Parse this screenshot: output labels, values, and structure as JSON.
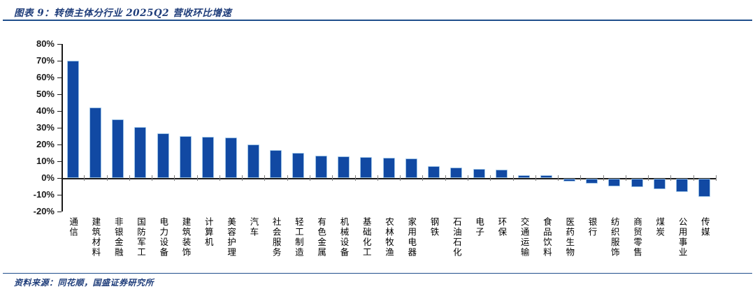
{
  "header": {
    "title": "图表 9：转债主体分行业 2025Q2 营收环比增速"
  },
  "footer": {
    "source": "资料来源：同花顺，国盛证券研究所"
  },
  "colors": {
    "accent_navy": "#1F3D7A",
    "rule_blue": "#1F4E8C",
    "bar_fill": "#1149A3",
    "bar_border": "#9DC3E6",
    "axis_black": "#1a1a1a"
  },
  "chart_data": {
    "type": "bar",
    "title": "转债主体分行业 2025Q2 营收环比增速",
    "categories": [
      "通信",
      "建筑材料",
      "非银金融",
      "国防军工",
      "电力设备",
      "建筑装饰",
      "计算机",
      "美容护理",
      "汽车",
      "社会服务",
      "轻工制造",
      "有色金属",
      "机械设备",
      "基础化工",
      "农林牧渔",
      "家用电器",
      "钢铁",
      "石油石化",
      "电子",
      "环保",
      "交通运输",
      "食品饮料",
      "医药生物",
      "银行",
      "纺织服饰",
      "商贸零售",
      "煤炭",
      "公用事业",
      "传媒"
    ],
    "values": [
      70,
      42,
      35,
      30.5,
      26.5,
      25,
      24.5,
      24,
      20,
      16.8,
      15,
      13.5,
      13,
      12.5,
      12,
      11.5,
      7,
      6.3,
      5.5,
      5.2,
      1.8,
      1.7,
      -1.7,
      -2.8,
      -4.7,
      -5,
      -6.2,
      -8,
      -10.7
    ],
    "ylabel": "",
    "xlabel": "",
    "ylim": [
      -20,
      80
    ],
    "ytick_step": 10,
    "ytick_labels": [
      "80%",
      "70%",
      "60%",
      "50%",
      "40%",
      "30%",
      "20%",
      "10%",
      "0%",
      "-10%",
      "-20%"
    ],
    "unit": "percent",
    "grid": false,
    "legend": false,
    "bar_color": "#1149A3",
    "bar_border_color": "#9DC3E6"
  }
}
